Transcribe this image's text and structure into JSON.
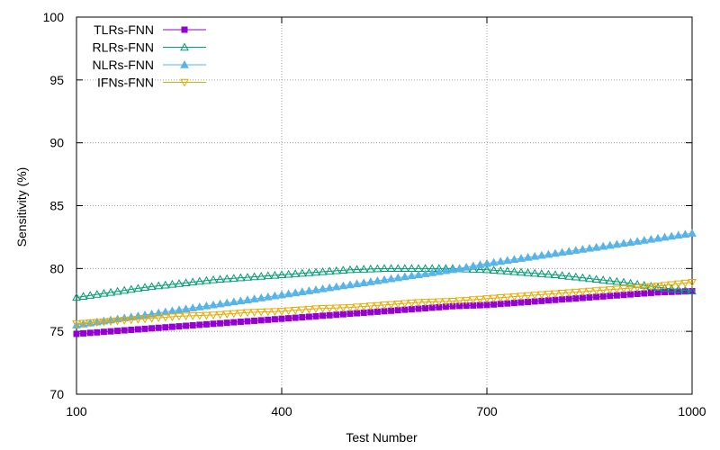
{
  "chart_data": {
    "type": "line",
    "xlabel": "Test Number",
    "ylabel": "Sensitivity (%)",
    "xlim": [
      100,
      1000
    ],
    "ylim": [
      70,
      100
    ],
    "xticks": [
      100,
      400,
      700,
      1000
    ],
    "yticks": [
      70,
      75,
      80,
      85,
      90,
      95,
      100
    ],
    "grid": true,
    "legend_position": "top-left",
    "series": [
      {
        "name": "TLRs-FNN",
        "color": "#9400d3",
        "marker": "filled-square",
        "x": [
          100,
          150,
          200,
          250,
          300,
          350,
          400,
          450,
          500,
          550,
          600,
          650,
          700,
          750,
          800,
          850,
          900,
          950,
          1000
        ],
        "values": [
          74.8,
          75.0,
          75.2,
          75.4,
          75.6,
          75.8,
          76.0,
          76.2,
          76.4,
          76.6,
          76.8,
          77.0,
          77.1,
          77.3,
          77.5,
          77.7,
          77.9,
          78.1,
          78.2
        ]
      },
      {
        "name": "RLRs-FNN",
        "color": "#009e73",
        "marker": "open-triangle-up",
        "x": [
          100,
          150,
          200,
          250,
          300,
          350,
          400,
          450,
          500,
          550,
          600,
          650,
          700,
          750,
          800,
          850,
          900,
          950,
          1000
        ],
        "values": [
          77.7,
          78.1,
          78.5,
          78.8,
          79.1,
          79.3,
          79.5,
          79.7,
          79.9,
          80.0,
          80.0,
          80.0,
          79.9,
          79.7,
          79.5,
          79.2,
          78.9,
          78.5,
          78.2
        ]
      },
      {
        "name": "NLRs-FNN",
        "color": "#56b4e9",
        "marker": "filled-triangle-up",
        "x": [
          100,
          150,
          200,
          250,
          300,
          350,
          400,
          450,
          500,
          550,
          600,
          650,
          700,
          750,
          800,
          850,
          900,
          950,
          1000
        ],
        "values": [
          75.5,
          75.9,
          76.3,
          76.7,
          77.1,
          77.5,
          77.9,
          78.3,
          78.7,
          79.1,
          79.5,
          79.9,
          80.4,
          80.8,
          81.2,
          81.6,
          82.0,
          82.4,
          82.8
        ]
      },
      {
        "name": "IFNs-FNN",
        "color": "#e6ab02",
        "marker": "open-triangle-down",
        "x": [
          100,
          150,
          200,
          250,
          300,
          350,
          400,
          450,
          500,
          550,
          600,
          650,
          700,
          750,
          800,
          850,
          900,
          950,
          1000
        ],
        "values": [
          75.6,
          75.8,
          76.0,
          76.2,
          76.3,
          76.5,
          76.6,
          76.8,
          76.9,
          77.1,
          77.3,
          77.4,
          77.6,
          77.8,
          78.0,
          78.2,
          78.4,
          78.6,
          78.9
        ]
      }
    ]
  }
}
